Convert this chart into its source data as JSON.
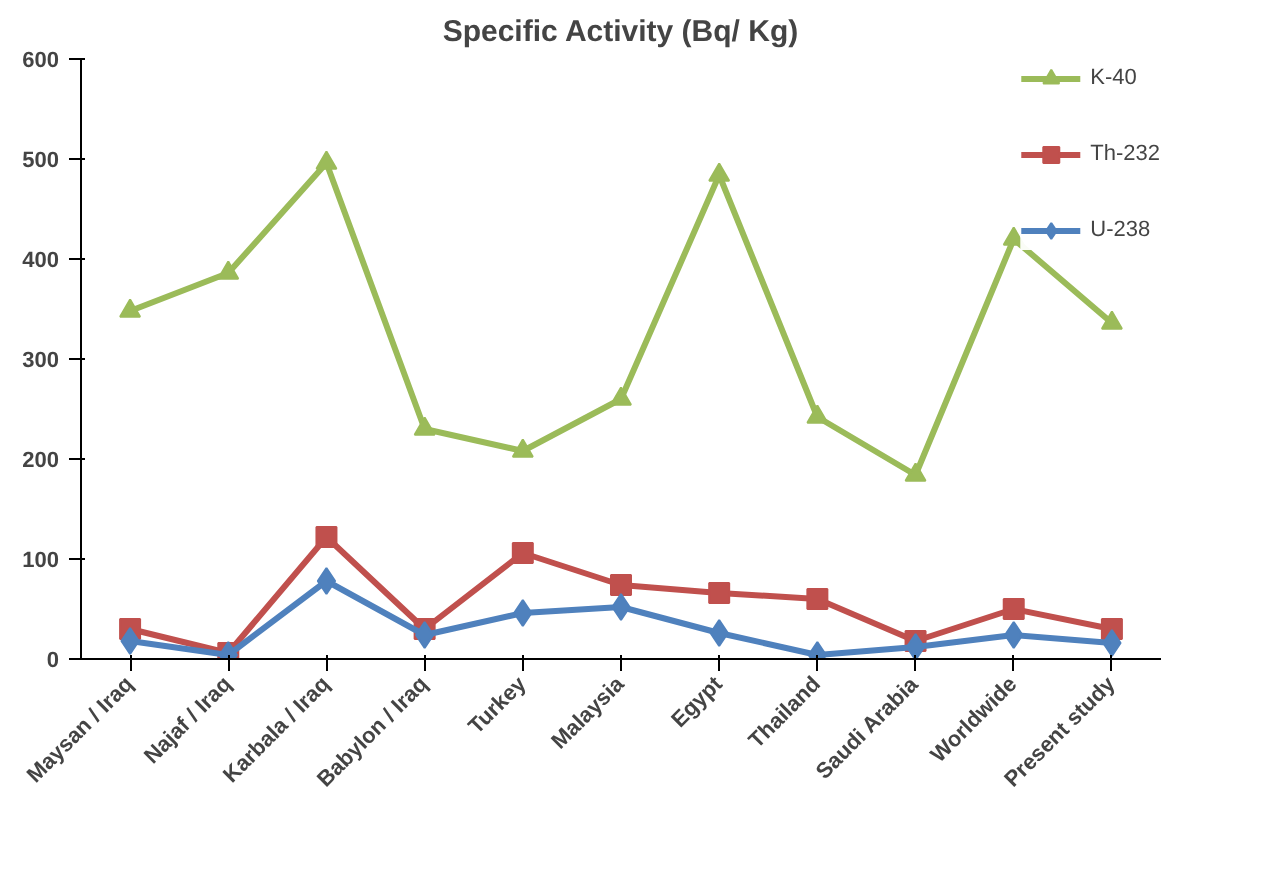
{
  "chart_data": {
    "type": "line",
    "title": "Specific Activity (Bq/ Kg)",
    "categories": [
      "Maysan / Iraq",
      "Najaf / Iraq",
      "Karbala / Iraq",
      "Babylon / Iraq",
      "Turkey",
      "Malaysia",
      "Egypt",
      "Thailand",
      "Saudi Arabia",
      "Worldwide",
      "Present study"
    ],
    "series": [
      {
        "name": "K-40",
        "color": "#9bbb59",
        "marker": "triangle",
        "values": [
          348,
          386,
          496,
          230,
          208,
          260,
          484,
          242,
          184,
          420,
          336
        ]
      },
      {
        "name": "Th-232",
        "color": "#c0504d",
        "marker": "square",
        "values": [
          30,
          6,
          122,
          30,
          106,
          74,
          66,
          60,
          18,
          50,
          30
        ]
      },
      {
        "name": "U-238",
        "color": "#4f81bd",
        "marker": "diamond",
        "values": [
          18,
          4,
          78,
          24,
          46,
          52,
          26,
          4,
          12,
          24,
          16
        ]
      }
    ],
    "ylim": [
      0,
      600
    ],
    "yticks": [
      0,
      100,
      200,
      300,
      400,
      500,
      600
    ],
    "grid": false,
    "legend": "top right",
    "line_style": "solid"
  }
}
